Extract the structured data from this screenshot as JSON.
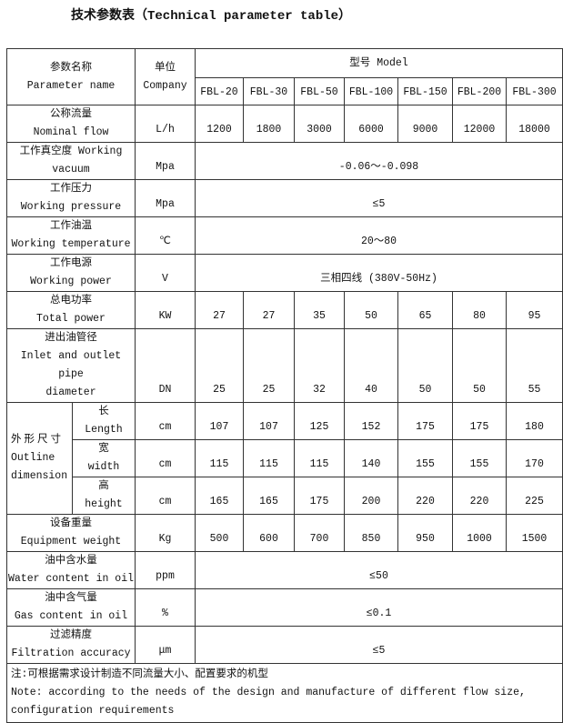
{
  "title": "技术参数表（Technical parameter table）",
  "header": {
    "param_cn": "参数名称",
    "param_en": "Parameter name",
    "unit_cn": "单位",
    "unit_en": "Company",
    "model": "型号 Model",
    "models": [
      "FBL-20",
      "FBL-30",
      "FBL-50",
      "FBL-100",
      "FBL-150",
      "FBL-200",
      "FBL-300"
    ]
  },
  "rows": {
    "flow": {
      "cn": "公称流量",
      "en": "Nominal flow",
      "unit": "L/h",
      "values": [
        "1200",
        "1800",
        "3000",
        "6000",
        "9000",
        "12000",
        "18000"
      ]
    },
    "vacuum": {
      "cn": "工作真空度 Working",
      "en": "vacuum",
      "unit": "Mpa",
      "value": "-0.06～-0.098"
    },
    "pressure": {
      "cn": "工作压力",
      "en": "Working pressure",
      "unit": "Mpa",
      "value": "≤5"
    },
    "temp": {
      "cn": "工作油温",
      "en": "Working temperature",
      "unit": "℃",
      "value": "20～80"
    },
    "power": {
      "cn": "工作电源",
      "en": "Working power",
      "unit": "V",
      "value": "三相四线 (380V-50Hz)"
    },
    "total": {
      "cn": "总电功率",
      "en": "Total power",
      "unit": "KW",
      "values": [
        "27",
        "27",
        "35",
        "50",
        "65",
        "80",
        "95"
      ]
    },
    "pipe": {
      "cn": "进出油管径",
      "en1": "Inlet and outlet pipe",
      "en2": "diameter",
      "unit": "DN",
      "values": [
        "25",
        "25",
        "32",
        "40",
        "50",
        "50",
        "55"
      ]
    },
    "outline": {
      "cn": "外形尺寸",
      "en1": "Outline",
      "en2": "dimension"
    },
    "length": {
      "cn": "长",
      "en": "Length",
      "unit": "cm",
      "values": [
        "107",
        "107",
        "125",
        "152",
        "175",
        "175",
        "180"
      ]
    },
    "width": {
      "cn": "宽",
      "en": "width",
      "unit": "cm",
      "values": [
        "115",
        "115",
        "115",
        "140",
        "155",
        "155",
        "170"
      ]
    },
    "height": {
      "cn": "高",
      "en": "height",
      "unit": "cm",
      "values": [
        "165",
        "165",
        "175",
        "200",
        "220",
        "220",
        "225"
      ]
    },
    "weight": {
      "cn": "设备重量",
      "en": "Equipment weight",
      "unit": "Kg",
      "values": [
        "500",
        "600",
        "700",
        "850",
        "950",
        "1000",
        "1500"
      ]
    },
    "water": {
      "cn": "油中含水量",
      "en": "Water content in oil",
      "unit": "ppm",
      "value": "≤50"
    },
    "gas": {
      "cn": "油中含气量",
      "en": "Gas content in oil",
      "unit": "%",
      "value": "≤0.1"
    },
    "filter": {
      "cn": "过滤精度",
      "en": "Filtration accuracy",
      "unit": "μm",
      "value": "≤5"
    }
  },
  "note": {
    "cn": "注:可根据需求设计制造不同流量大小、配置要求的机型",
    "en": "Note: according to the needs of the design and manufacture of different flow size, configuration requirements"
  }
}
